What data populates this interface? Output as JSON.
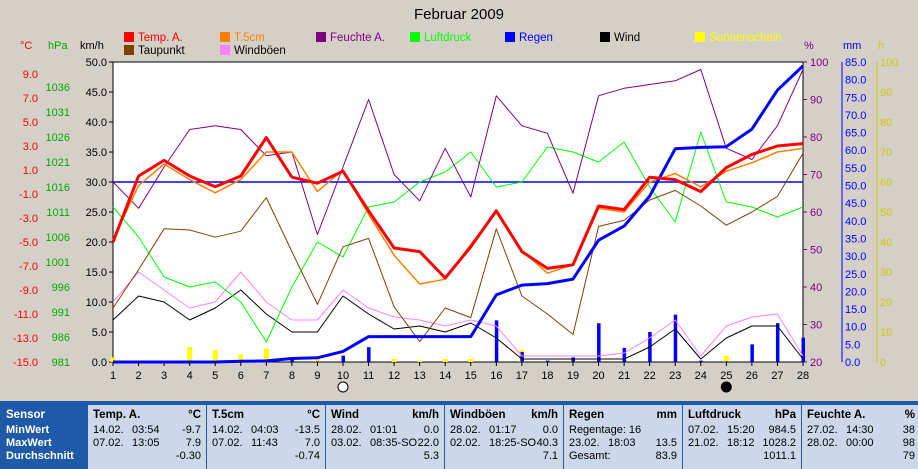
{
  "title": "Februar 2009",
  "legend": [
    {
      "label": "Temp. A.",
      "color": "#ff0000",
      "text_color": "#ff0000"
    },
    {
      "label": "T.5cm",
      "color": "#ff8000",
      "text_color": "#ff8000"
    },
    {
      "label": "Feuchte A.",
      "color": "#800080",
      "text_color": "#800080"
    },
    {
      "label": "Luftdruck",
      "color": "#00ff00",
      "text_color": "#00ff00"
    },
    {
      "label": "Regen",
      "color": "#0000ff",
      "text_color": "#0000ff"
    },
    {
      "label": "Wind",
      "color": "#000000",
      "text_color": "#000000"
    },
    {
      "label": "Sonnenschein",
      "color": "#ffff00",
      "text_color": "#ffff00"
    },
    {
      "label": "Taupunkt",
      "color": "#804000",
      "text_color": "#000000"
    },
    {
      "label": "Windböen",
      "color": "#ff80ff",
      "text_color": "#000000"
    }
  ],
  "units": {
    "temp": "°C",
    "pressure": "hPa",
    "wind": "km/h",
    "humidity": "%",
    "rain": "mm",
    "sun": "h"
  },
  "axes": {
    "temp_ticks": [
      "9.0",
      "7.0",
      "5.0",
      "3.0",
      "1.0",
      "-1.0",
      "-3.0",
      "-5.0",
      "-7.0",
      "-9.0",
      "-11.0",
      "-13.0",
      "-15.0"
    ],
    "pressure_ticks": [
      "1036",
      "1031",
      "1026",
      "1021",
      "1016",
      "1011",
      "1006",
      "1001",
      "996",
      "991",
      "986",
      "981"
    ],
    "wind_ticks": [
      "50.0",
      "45.0",
      "40.0",
      "35.0",
      "30.0",
      "25.0",
      "20.0",
      "15.0",
      "10.0",
      "5.0",
      "0.0"
    ],
    "humidity_ticks": [
      "100",
      "90",
      "80",
      "70",
      "60",
      "50",
      "40",
      "30",
      "20"
    ],
    "rain_ticks": [
      "85.0",
      "80.0",
      "75.0",
      "70.0",
      "65.0",
      "60.0",
      "55.0",
      "50.0",
      "45.0",
      "40.0",
      "35.0",
      "30.0",
      "25.0",
      "20.0",
      "15.0",
      "10.0",
      "5.0",
      "0.0"
    ],
    "sun_ticks": [
      "100",
      "90",
      "80",
      "70",
      "60",
      "50",
      "40",
      "30",
      "20",
      "10",
      "0"
    ],
    "x_ticks": [
      "1",
      "2",
      "3",
      "4",
      "5",
      "6",
      "7",
      "8",
      "9",
      "10",
      "11",
      "12",
      "13",
      "14",
      "15",
      "16",
      "17",
      "18",
      "19",
      "20",
      "21",
      "22",
      "23",
      "24",
      "25",
      "26",
      "27",
      "28"
    ]
  },
  "chart_data": {
    "type": "line",
    "title": "Februar 2009",
    "x": [
      1,
      2,
      3,
      4,
      5,
      6,
      7,
      8,
      9,
      10,
      11,
      12,
      13,
      14,
      15,
      16,
      17,
      18,
      19,
      20,
      21,
      22,
      23,
      24,
      25,
      26,
      27,
      28
    ],
    "wind_axis_ylim": [
      0,
      50
    ],
    "rain_axis_ylim": [
      0,
      85
    ],
    "humidity_axis_ylim": [
      20,
      100
    ],
    "moon_phases": [
      {
        "day": 10,
        "phase": "full"
      },
      {
        "day": 25,
        "phase": "new"
      }
    ],
    "series": [
      {
        "name": "Temp. A.",
        "axis": "°C",
        "values": [
          -5.0,
          0.5,
          1.8,
          0.5,
          -0.4,
          0.5,
          3.7,
          0.4,
          -0.1,
          0.9,
          -2.4,
          -5.5,
          -5.8,
          -8.0,
          -5.4,
          -2.4,
          -5.8,
          -7.2,
          -6.9,
          -2.0,
          -2.3,
          0.4,
          0.2,
          -0.8,
          1.2,
          2.3,
          3.0,
          3.2
        ]
      },
      {
        "name": "T.5cm",
        "axis": "°C",
        "values": [
          -4.8,
          -0.3,
          1.5,
          0.2,
          -0.9,
          0.2,
          2.5,
          2.5,
          -0.8,
          1.0,
          -2.7,
          -6.1,
          -8.5,
          -8.1,
          -5.2,
          -2.5,
          -5.7,
          -7.6,
          -6.9,
          -2.2,
          -2.5,
          0.0,
          0.7,
          -0.4,
          0.9,
          1.6,
          2.5,
          2.8
        ]
      },
      {
        "name": "Feuchte A.",
        "axis": "%",
        "values": [
          68,
          61,
          72,
          82,
          83,
          82,
          75,
          76,
          54,
          72,
          90,
          70,
          63,
          77,
          64,
          91,
          83,
          81,
          65,
          91,
          93,
          94,
          95,
          98,
          77,
          74,
          83,
          98
        ]
      },
      {
        "name": "Luftdruck",
        "axis": "hPa",
        "values": [
          1012,
          1006,
          998,
          996,
          997,
          993,
          985,
          996,
          1005,
          1002,
          1012,
          1013,
          1017,
          1019,
          1023,
          1016,
          1017,
          1024,
          1023,
          1021,
          1025,
          1016,
          1009,
          1027,
          1013,
          1012,
          1010,
          1012
        ]
      },
      {
        "name": "Regen",
        "axis": "mm",
        "values": [
          0,
          0,
          0,
          0,
          0,
          0.2,
          0.3,
          1.0,
          1.2,
          3.0,
          7.2,
          7.2,
          7.2,
          7.2,
          7.2,
          19.0,
          21.8,
          22.2,
          23.5,
          34.5,
          38.5,
          47.0,
          60.4,
          60.8,
          61.0,
          66.0,
          77.0,
          83.9
        ]
      },
      {
        "name": "Wind",
        "axis": "km/h",
        "values": [
          7.0,
          11.0,
          10.0,
          7.0,
          9.0,
          12.0,
          8.0,
          5.0,
          5.0,
          11.0,
          8.0,
          5.5,
          6.0,
          5.0,
          6.5,
          4.0,
          0.5,
          0.5,
          0.5,
          0.5,
          0.5,
          2.5,
          5.5,
          0.5,
          4.0,
          6.0,
          6.0,
          0.5
        ]
      },
      {
        "name": "Taupunkt",
        "axis": "°C",
        "values": [
          -10.5,
          -7.3,
          -3.9,
          -4.0,
          -4.6,
          -4.1,
          -1.3,
          -5.8,
          -10.2,
          -5.4,
          -4.7,
          -10.4,
          -13.3,
          -10.5,
          -11.3,
          -3.9,
          -9.5,
          -11.0,
          -12.7,
          -3.7,
          -3.2,
          -1.5,
          -0.7,
          -2.0,
          -3.6,
          -2.5,
          -1.2,
          2.4
        ]
      },
      {
        "name": "Windböen",
        "axis": "km/h",
        "values": [
          10.0,
          15.0,
          12.0,
          9.0,
          10.0,
          15.0,
          10.0,
          7.0,
          7.0,
          12.0,
          9.0,
          7.5,
          7.0,
          6.0,
          7.0,
          6.0,
          1.0,
          1.0,
          1.0,
          1.0,
          1.5,
          4.0,
          7.0,
          1.0,
          6.0,
          7.5,
          8.0,
          1.0
        ]
      },
      {
        "name": "Regen (Tag)",
        "axis": "mm",
        "values": [
          0,
          0,
          0,
          0,
          0,
          0.2,
          0.1,
          0.7,
          0.2,
          1.8,
          4.2,
          0,
          0,
          0,
          0,
          11.8,
          2.8,
          0.4,
          1.3,
          11.0,
          4.0,
          8.5,
          13.4,
          0.4,
          0.2,
          5.0,
          11.0,
          6.9
        ]
      },
      {
        "name": "Sonnenschein",
        "axis": "h",
        "values": [
          1.5,
          0,
          0,
          5.0,
          4.0,
          2.5,
          4.5,
          0,
          2.0,
          0,
          0,
          1.0,
          0.5,
          1.0,
          1.0,
          0,
          4.0,
          0,
          1.0,
          0,
          0,
          0,
          0,
          0,
          2.0,
          0,
          0,
          0
        ]
      }
    ]
  },
  "table": {
    "row_labels": [
      "Sensor",
      "MinWert",
      "MaxWert",
      "Durchschnitt"
    ],
    "columns": [
      {
        "header": "Temp. A.",
        "unit": "°C",
        "min": {
          "date": "14.02.",
          "time": "03:54",
          "dir": "",
          "value": "-9.7"
        },
        "max": {
          "date": "07.02.",
          "time": "13:05",
          "dir": "",
          "value": "7.9"
        },
        "avg": "-0.30"
      },
      {
        "header": "T.5cm",
        "unit": "°C",
        "min": {
          "date": "14.02.",
          "time": "04:03",
          "dir": "",
          "value": "-13.5"
        },
        "max": {
          "date": "07.02.",
          "time": "11:43",
          "dir": "",
          "value": "7.0"
        },
        "avg": "-0.74"
      },
      {
        "header": "Wind",
        "unit": "km/h",
        "min": {
          "date": "28.02.",
          "time": "01:01",
          "dir": "",
          "value": "0.0"
        },
        "max": {
          "date": "03.02.",
          "time": "08:35",
          "dir": "-SO",
          "value": "22.0"
        },
        "avg": "5.3"
      },
      {
        "header": "Windböen",
        "unit": "km/h",
        "min": {
          "date": "28.02.",
          "time": "01:17",
          "dir": "",
          "value": "0.0"
        },
        "max": {
          "date": "02.02.",
          "time": "18:25",
          "dir": "-SO",
          "value": "40.3"
        },
        "avg": "7.1"
      },
      {
        "header": "Regen",
        "unit": "mm",
        "min": {
          "date": "Regentage: 16",
          "time": "",
          "dir": "",
          "value": ""
        },
        "max": {
          "date": "23.02.",
          "time": "18:03",
          "dir": "",
          "value": "13.5"
        },
        "avg": "Gesamt:",
        "avg_value": "83.9"
      },
      {
        "header": "Luftdruck",
        "unit": "hPa",
        "min": {
          "date": "07.02.",
          "time": "15:20",
          "dir": "",
          "value": "984.5"
        },
        "max": {
          "date": "21.02.",
          "time": "18:12",
          "dir": "",
          "value": "1028.2"
        },
        "avg": "1011.1"
      },
      {
        "header": "Feuchte A.",
        "unit": "%",
        "min": {
          "date": "27.02.",
          "time": "14:30",
          "dir": "",
          "value": "38"
        },
        "max": {
          "date": "28.02.",
          "time": "00:00",
          "dir": "",
          "value": "98"
        },
        "avg": "79"
      }
    ]
  }
}
